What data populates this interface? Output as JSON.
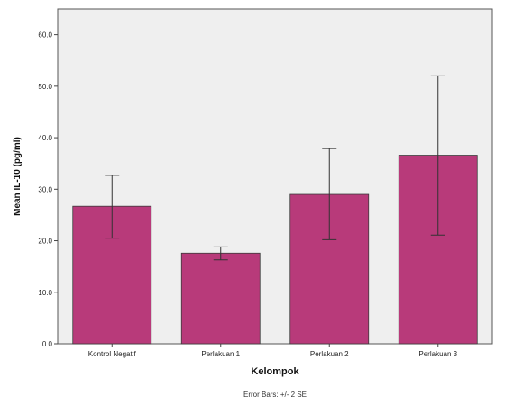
{
  "chart_data": {
    "type": "bar",
    "categories": [
      "Kontrol Negatif",
      "Perlakuan 1",
      "Perlakuan 2",
      "Perlakuan 3"
    ],
    "values": [
      26.7,
      17.6,
      29.0,
      36.6
    ],
    "error_low": [
      20.5,
      16.3,
      20.2,
      21.1
    ],
    "error_high": [
      32.7,
      18.8,
      37.9,
      52.0
    ],
    "xlabel": "Kelompok",
    "ylabel": "Mean IL-10 (pg/ml)",
    "ylim": [
      0,
      65
    ],
    "yticks": [
      "0.0",
      "10.0",
      "20.0",
      "30.0",
      "40.0",
      "50.0",
      "60.0"
    ],
    "note": "Error Bars: +/- 2 SE",
    "grid": false,
    "colors": {
      "bar": "#b83a7a",
      "plot_background": "#efefef"
    }
  }
}
